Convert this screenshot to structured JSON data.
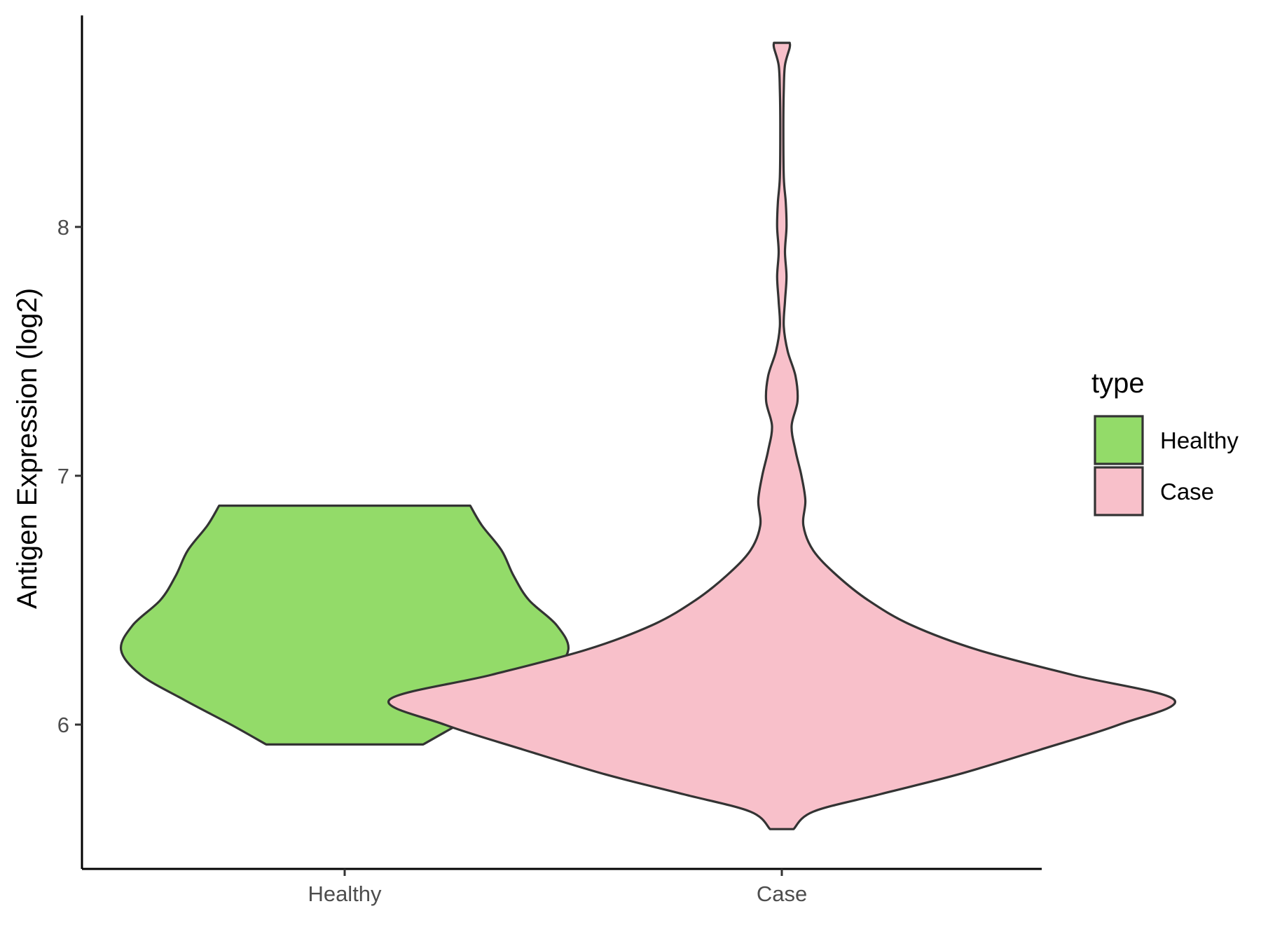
{
  "chart_data": {
    "type": "violin",
    "title": "",
    "xlabel": "",
    "ylabel": "Antigen Expression (log2)",
    "ylim": [
      5.42,
      8.85
    ],
    "yticks": [
      6,
      7,
      8
    ],
    "categories": [
      "Healthy",
      "Case"
    ],
    "legend": {
      "title": "type",
      "position": "right",
      "entries": [
        {
          "label": "Healthy",
          "color": "#93db69"
        },
        {
          "label": "Case",
          "color": "#f8c0ca"
        }
      ]
    },
    "series": [
      {
        "name": "Healthy",
        "color": "#93db69",
        "profile": [
          [
            5.92,
            0.2
          ],
          [
            6.0,
            0.29
          ],
          [
            6.1,
            0.41
          ],
          [
            6.2,
            0.52
          ],
          [
            6.3,
            0.57
          ],
          [
            6.4,
            0.54
          ],
          [
            6.5,
            0.47
          ],
          [
            6.6,
            0.43
          ],
          [
            6.7,
            0.4
          ],
          [
            6.8,
            0.35
          ],
          [
            6.88,
            0.32
          ]
        ]
      },
      {
        "name": "Case",
        "color": "#f8c0ca",
        "profile": [
          [
            5.58,
            0.03
          ],
          [
            5.65,
            0.08
          ],
          [
            5.72,
            0.25
          ],
          [
            5.8,
            0.45
          ],
          [
            5.9,
            0.66
          ],
          [
            6.0,
            0.86
          ],
          [
            6.1,
            1.0
          ],
          [
            6.2,
            0.74
          ],
          [
            6.3,
            0.5
          ],
          [
            6.4,
            0.33
          ],
          [
            6.5,
            0.22
          ],
          [
            6.6,
            0.14
          ],
          [
            6.7,
            0.08
          ],
          [
            6.8,
            0.055
          ],
          [
            6.9,
            0.06
          ],
          [
            7.0,
            0.05
          ],
          [
            7.1,
            0.035
          ],
          [
            7.2,
            0.025
          ],
          [
            7.3,
            0.04
          ],
          [
            7.4,
            0.035
          ],
          [
            7.5,
            0.015
          ],
          [
            7.6,
            0.005
          ],
          [
            7.7,
            0.008
          ],
          [
            7.8,
            0.012
          ],
          [
            7.9,
            0.008
          ],
          [
            8.0,
            0.012
          ],
          [
            8.1,
            0.01
          ],
          [
            8.2,
            0.005
          ],
          [
            8.4,
            0.004
          ],
          [
            8.55,
            0.005
          ],
          [
            8.65,
            0.008
          ],
          [
            8.72,
            0.02
          ],
          [
            8.74,
            0.02
          ]
        ]
      }
    ]
  }
}
